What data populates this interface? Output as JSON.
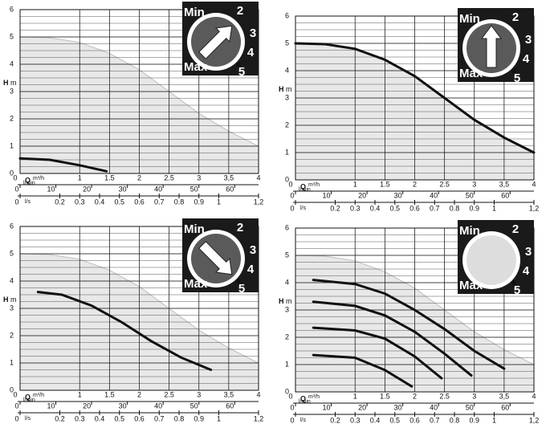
{
  "chart_data": [
    {
      "type": "line",
      "ylabel": "H",
      "yunit": "m",
      "xlabel": "Q",
      "xunit": "m³/h",
      "x2label": "l/min",
      "x3label": "l/s",
      "xlim": [
        0,
        4
      ],
      "xticks": [
        0,
        1,
        1.5,
        2,
        2.5,
        3,
        {
          "value": 3.5,
          "label": "3,5"
        },
        4
      ],
      "ylim": [
        0,
        6
      ],
      "yticks": [
        0,
        1,
        2,
        3,
        4,
        5,
        6
      ],
      "x2lim": [
        0,
        66.67
      ],
      "x2ticks": [
        0,
        10,
        20,
        30,
        40,
        50,
        60
      ],
      "x3lim": [
        0,
        1.2
      ],
      "x3ticks": [
        0,
        0.2,
        0.3,
        0.4,
        0.5,
        0.6,
        0.7,
        0.8,
        0.9,
        1,
        {
          "value": 1.2,
          "label": "1,2"
        }
      ],
      "grid": true,
      "dial_labels": [
        "Min",
        "2",
        "3",
        "4",
        "Max",
        "5"
      ],
      "envelope": {
        "color": "#bdbdbd",
        "x": [
          0,
          0.5,
          1,
          1.5,
          2,
          2.5,
          3,
          3.5,
          4
        ],
        "values": [
          5,
          4.97,
          4.8,
          4.4,
          3.8,
          3.0,
          2.2,
          1.55,
          1.0
        ]
      },
      "series": [
        {
          "color": "#111111",
          "x": [
            0,
            0.5,
            1,
            1.45
          ],
          "values": [
            0.55,
            0.5,
            0.3,
            0.08
          ]
        }
      ]
    },
    {
      "type": "line",
      "ylabel": "H",
      "yunit": "m",
      "xlabel": "Q",
      "xunit": "m³/h",
      "x2label": "l/min",
      "x3label": "l/s",
      "xlim": [
        0,
        4
      ],
      "xticks": [
        0,
        1,
        1.5,
        2,
        2.5,
        3,
        {
          "value": 3.5,
          "label": "3,5"
        },
        4
      ],
      "ylim": [
        0,
        6
      ],
      "yticks": [
        0,
        1,
        2,
        3,
        4,
        5,
        6
      ],
      "x2lim": [
        0,
        66.67
      ],
      "x2ticks": [
        0,
        10,
        20,
        30,
        40,
        50,
        60
      ],
      "x3lim": [
        0,
        1.2
      ],
      "x3ticks": [
        0,
        0.2,
        0.3,
        0.4,
        0.5,
        0.6,
        0.7,
        0.8,
        0.9,
        1,
        {
          "value": 1.2,
          "label": "1,2"
        }
      ],
      "grid": true,
      "dial_labels": [
        "Min",
        "2",
        "3",
        "4",
        "Max",
        "5"
      ],
      "envelope": {
        "color": "#bdbdbd",
        "x": [
          0,
          0.5,
          1,
          1.5,
          2,
          2.5,
          3,
          3.5,
          4
        ],
        "values": [
          5,
          4.97,
          4.8,
          4.4,
          3.8,
          3.0,
          2.2,
          1.55,
          1.0
        ]
      },
      "series": [
        {
          "color": "#111111",
          "x": [
            0,
            0.5,
            1,
            1.5,
            2,
            2.5,
            3,
            3.5,
            4
          ],
          "values": [
            5,
            4.97,
            4.8,
            4.4,
            3.8,
            3.0,
            2.2,
            1.55,
            1.0
          ]
        }
      ]
    },
    {
      "type": "line",
      "ylabel": "H",
      "yunit": "m",
      "xlabel": "Q",
      "xunit": "m³/h",
      "x2label": "l/min",
      "x3label": "l/s",
      "xlim": [
        0,
        4
      ],
      "xticks": [
        0,
        1,
        1.5,
        2,
        2.5,
        3,
        {
          "value": 3.5,
          "label": "3,5"
        },
        4
      ],
      "ylim": [
        0,
        6
      ],
      "yticks": [
        0,
        1,
        2,
        3,
        4,
        5,
        6
      ],
      "x2lim": [
        0,
        66.67
      ],
      "x2ticks": [
        0,
        10,
        20,
        30,
        40,
        50,
        60
      ],
      "x3lim": [
        0,
        1.2
      ],
      "x3ticks": [
        0,
        0.2,
        0.3,
        0.4,
        0.5,
        0.6,
        0.7,
        0.8,
        0.9,
        1,
        {
          "value": 1.2,
          "label": "1,2"
        }
      ],
      "grid": true,
      "dial_labels": [
        "Min",
        "2",
        "3",
        "4",
        "Max",
        "5"
      ],
      "envelope": {
        "color": "#bdbdbd",
        "x": [
          0,
          0.5,
          1,
          1.5,
          2,
          2.5,
          3,
          3.5,
          4
        ],
        "values": [
          5,
          4.97,
          4.8,
          4.4,
          3.8,
          3.0,
          2.2,
          1.55,
          1.0
        ]
      },
      "series": [
        {
          "color": "#111111",
          "x": [
            0.3,
            0.7,
            1.2,
            1.7,
            2.2,
            2.7,
            3.2
          ],
          "values": [
            3.6,
            3.5,
            3.1,
            2.5,
            1.8,
            1.2,
            0.75
          ]
        }
      ]
    },
    {
      "type": "line",
      "ylabel": "H",
      "yunit": "m",
      "xlabel": "Q",
      "xunit": "m³/h",
      "x2label": "l/min",
      "x3label": "l/s",
      "xlim": [
        0,
        4
      ],
      "xticks": [
        0,
        1,
        1.5,
        2,
        2.5,
        3,
        {
          "value": 3.5,
          "label": "3,5"
        },
        4
      ],
      "ylim": [
        0,
        6
      ],
      "yticks": [
        0,
        1,
        2,
        3,
        4,
        5,
        6
      ],
      "x2lim": [
        0,
        66.67
      ],
      "x2ticks": [
        0,
        10,
        20,
        30,
        40,
        50,
        60
      ],
      "x3lim": [
        0,
        1.2
      ],
      "x3ticks": [
        0,
        0.2,
        0.3,
        0.4,
        0.5,
        0.6,
        0.7,
        0.8,
        0.9,
        1,
        {
          "value": 1.2,
          "label": "1,2"
        }
      ],
      "grid": true,
      "dial_labels": [
        "Min",
        "2",
        "3",
        "4",
        "Max",
        "5"
      ],
      "envelope": {
        "color": "#bdbdbd",
        "x": [
          0,
          0.5,
          1,
          1.5,
          2,
          2.5,
          3,
          3.5,
          4
        ],
        "values": [
          5,
          4.97,
          4.8,
          4.4,
          3.8,
          3.0,
          2.2,
          1.55,
          1.0
        ]
      },
      "series": [
        {
          "color": "#111111",
          "x": [
            0.3,
            1,
            1.5,
            2,
            2.5,
            3,
            3.5
          ],
          "values": [
            4.1,
            3.95,
            3.6,
            3.0,
            2.3,
            1.5,
            0.85
          ]
        },
        {
          "color": "#111111",
          "x": [
            0.3,
            1,
            1.5,
            2,
            2.5,
            2.95
          ],
          "values": [
            3.3,
            3.15,
            2.8,
            2.2,
            1.4,
            0.6
          ]
        },
        {
          "color": "#111111",
          "x": [
            0.3,
            1,
            1.5,
            2,
            2.45
          ],
          "values": [
            2.35,
            2.25,
            1.95,
            1.3,
            0.5
          ]
        },
        {
          "color": "#111111",
          "x": [
            0.3,
            1,
            1.5,
            1.95
          ],
          "values": [
            1.35,
            1.25,
            0.8,
            0.2
          ]
        }
      ]
    }
  ]
}
